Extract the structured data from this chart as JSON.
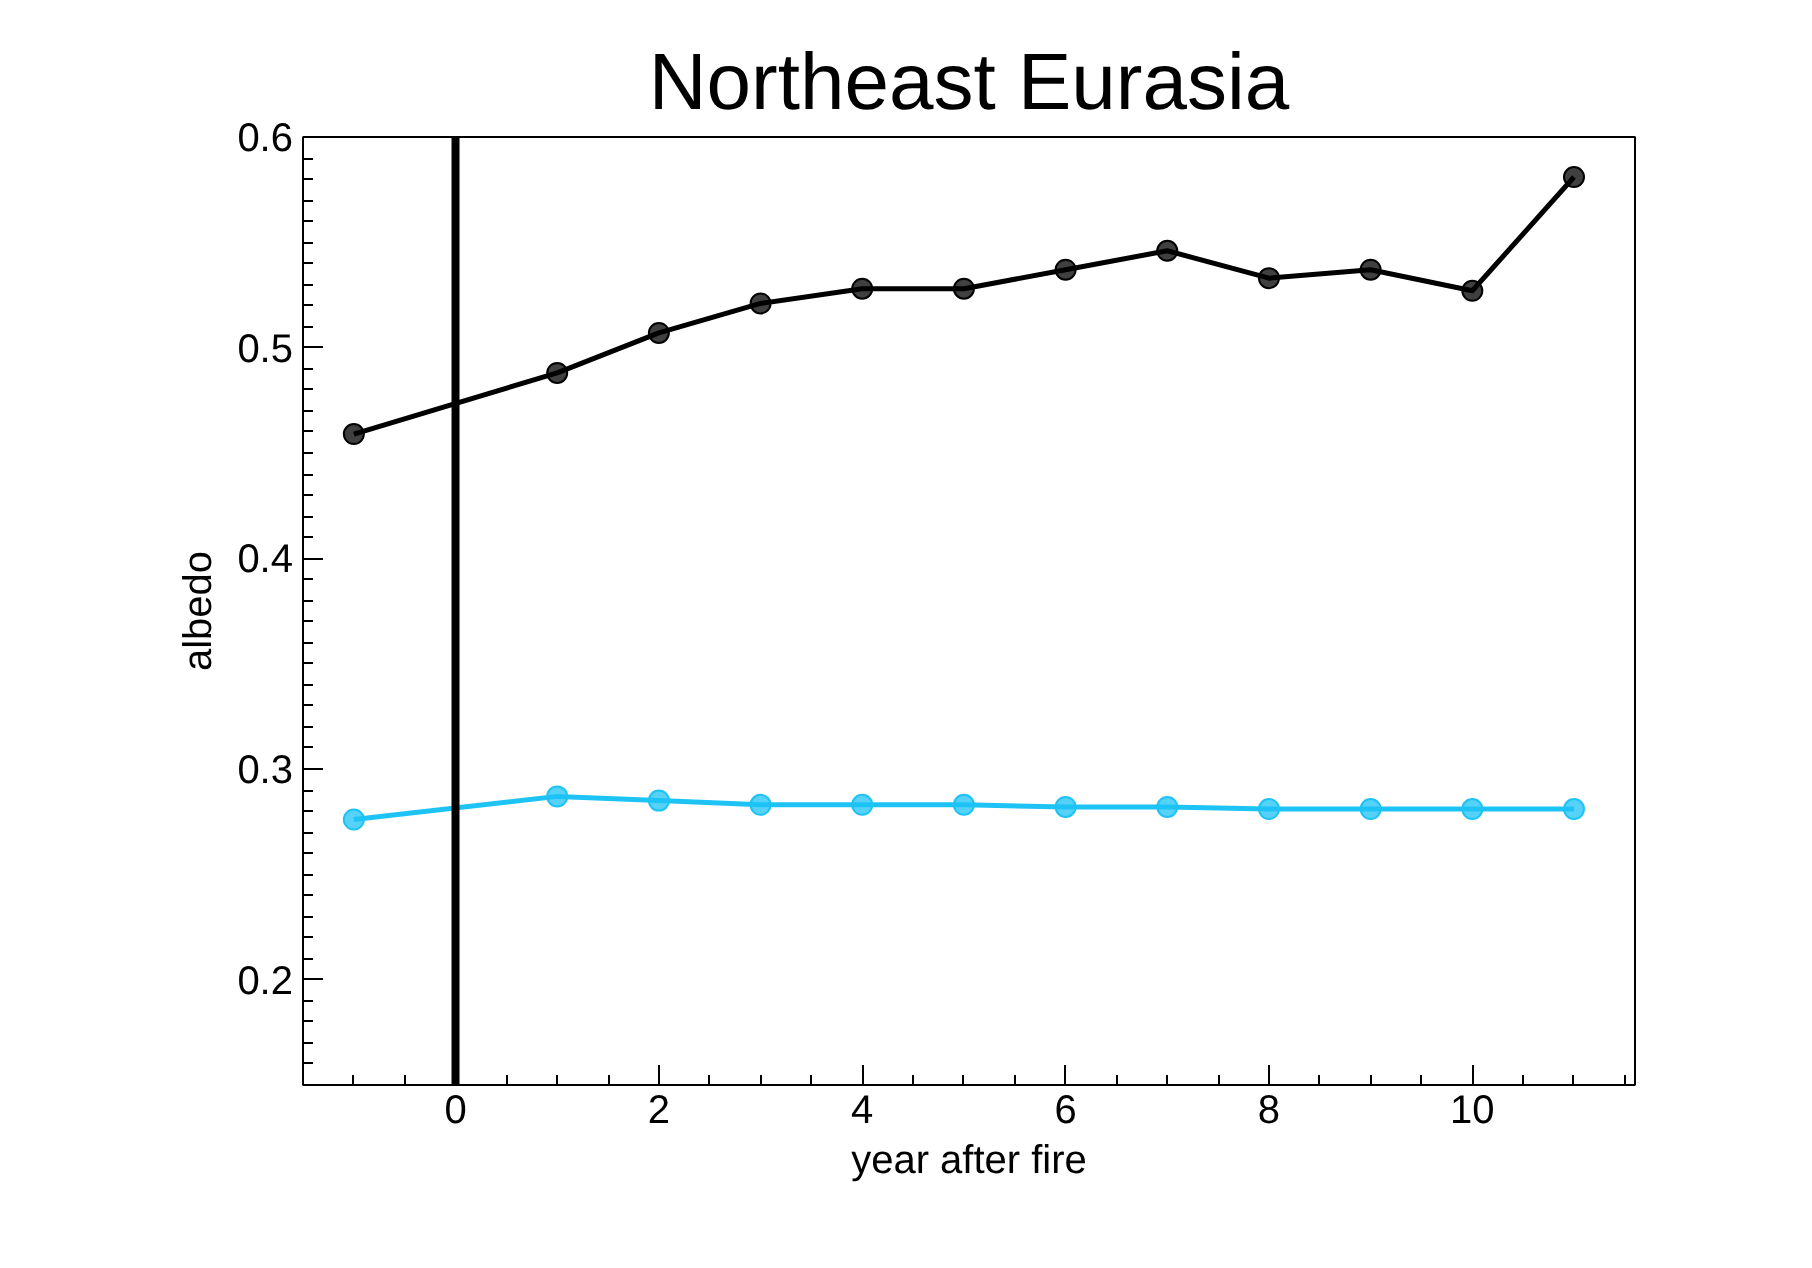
{
  "chart_data": {
    "type": "line",
    "title": "Northeast Eurasia",
    "xlabel": "year after fire",
    "ylabel": "albedo",
    "x": [
      -1,
      1,
      2,
      3,
      4,
      5,
      6,
      7,
      8,
      9,
      10,
      11
    ],
    "series": [
      {
        "color": "#000000",
        "values": [
          0.459,
          0.488,
          0.507,
          0.521,
          0.528,
          0.528,
          0.537,
          0.546,
          0.533,
          0.537,
          0.527,
          0.581
        ]
      },
      {
        "color": "#1ec3f5",
        "values": [
          0.276,
          0.287,
          0.285,
          0.283,
          0.283,
          0.283,
          0.282,
          0.282,
          0.281,
          0.281,
          0.281,
          0.281
        ]
      }
    ],
    "xlim": [
      -1.5,
      11.6
    ],
    "ylim": [
      0.15,
      0.6
    ],
    "xticks": [
      0,
      2,
      4,
      6,
      8,
      10
    ],
    "yticks": [
      0.2,
      0.3,
      0.4,
      0.5,
      0.6
    ],
    "ref_lines": [
      {
        "axis": "x",
        "value": 0,
        "color": "#000000"
      }
    ],
    "marker": "circle",
    "line_style": "solid",
    "grid": false
  }
}
